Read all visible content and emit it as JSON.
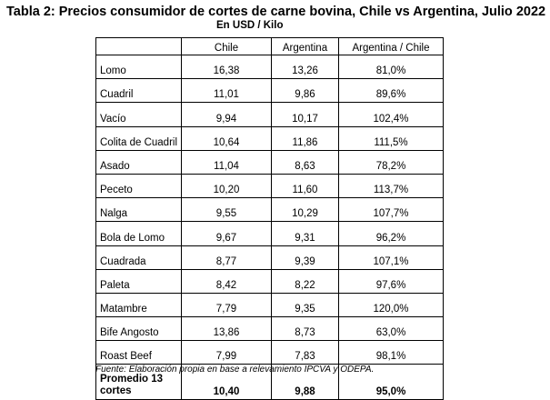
{
  "title": "Tabla 2: Precios consumidor de cortes de carne bovina, Chile vs Argentina, Julio 2022",
  "subtitle": "En USD / Kilo",
  "table": {
    "headers": [
      "",
      "Chile",
      "Argentina",
      "Argentina  / Chile"
    ],
    "rows": [
      [
        "Lomo",
        "16,38",
        "13,26",
        "81,0%"
      ],
      [
        "Cuadril",
        "11,01",
        "9,86",
        "89,6%"
      ],
      [
        "Vacío",
        "9,94",
        "10,17",
        "102,4%"
      ],
      [
        "Colita de Cuadril",
        "10,64",
        "11,86",
        "111,5%"
      ],
      [
        "Asado",
        "11,04",
        "8,63",
        "78,2%"
      ],
      [
        "Peceto",
        "10,20",
        "11,60",
        "113,7%"
      ],
      [
        "Nalga",
        "9,55",
        "10,29",
        "107,7%"
      ],
      [
        "Bola de Lomo",
        "9,67",
        "9,31",
        "96,2%"
      ],
      [
        "Cuadrada",
        "8,77",
        "9,39",
        "107,1%"
      ],
      [
        "Paleta",
        "8,42",
        "8,22",
        "97,6%"
      ],
      [
        "Matambre",
        "7,79",
        "9,35",
        "120,0%"
      ],
      [
        "Bife Angosto",
        "13,86",
        "8,73",
        "63,0%"
      ],
      [
        "Roast Beef",
        "7,99",
        "7,83",
        "98,1%"
      ]
    ],
    "footer": [
      "Promedio 13 cortes",
      "10,40",
      "9,88",
      "95,0%"
    ]
  },
  "source": "Fuente: Elaboración propia en base a relevamiento IPCVA y ODEPA."
}
